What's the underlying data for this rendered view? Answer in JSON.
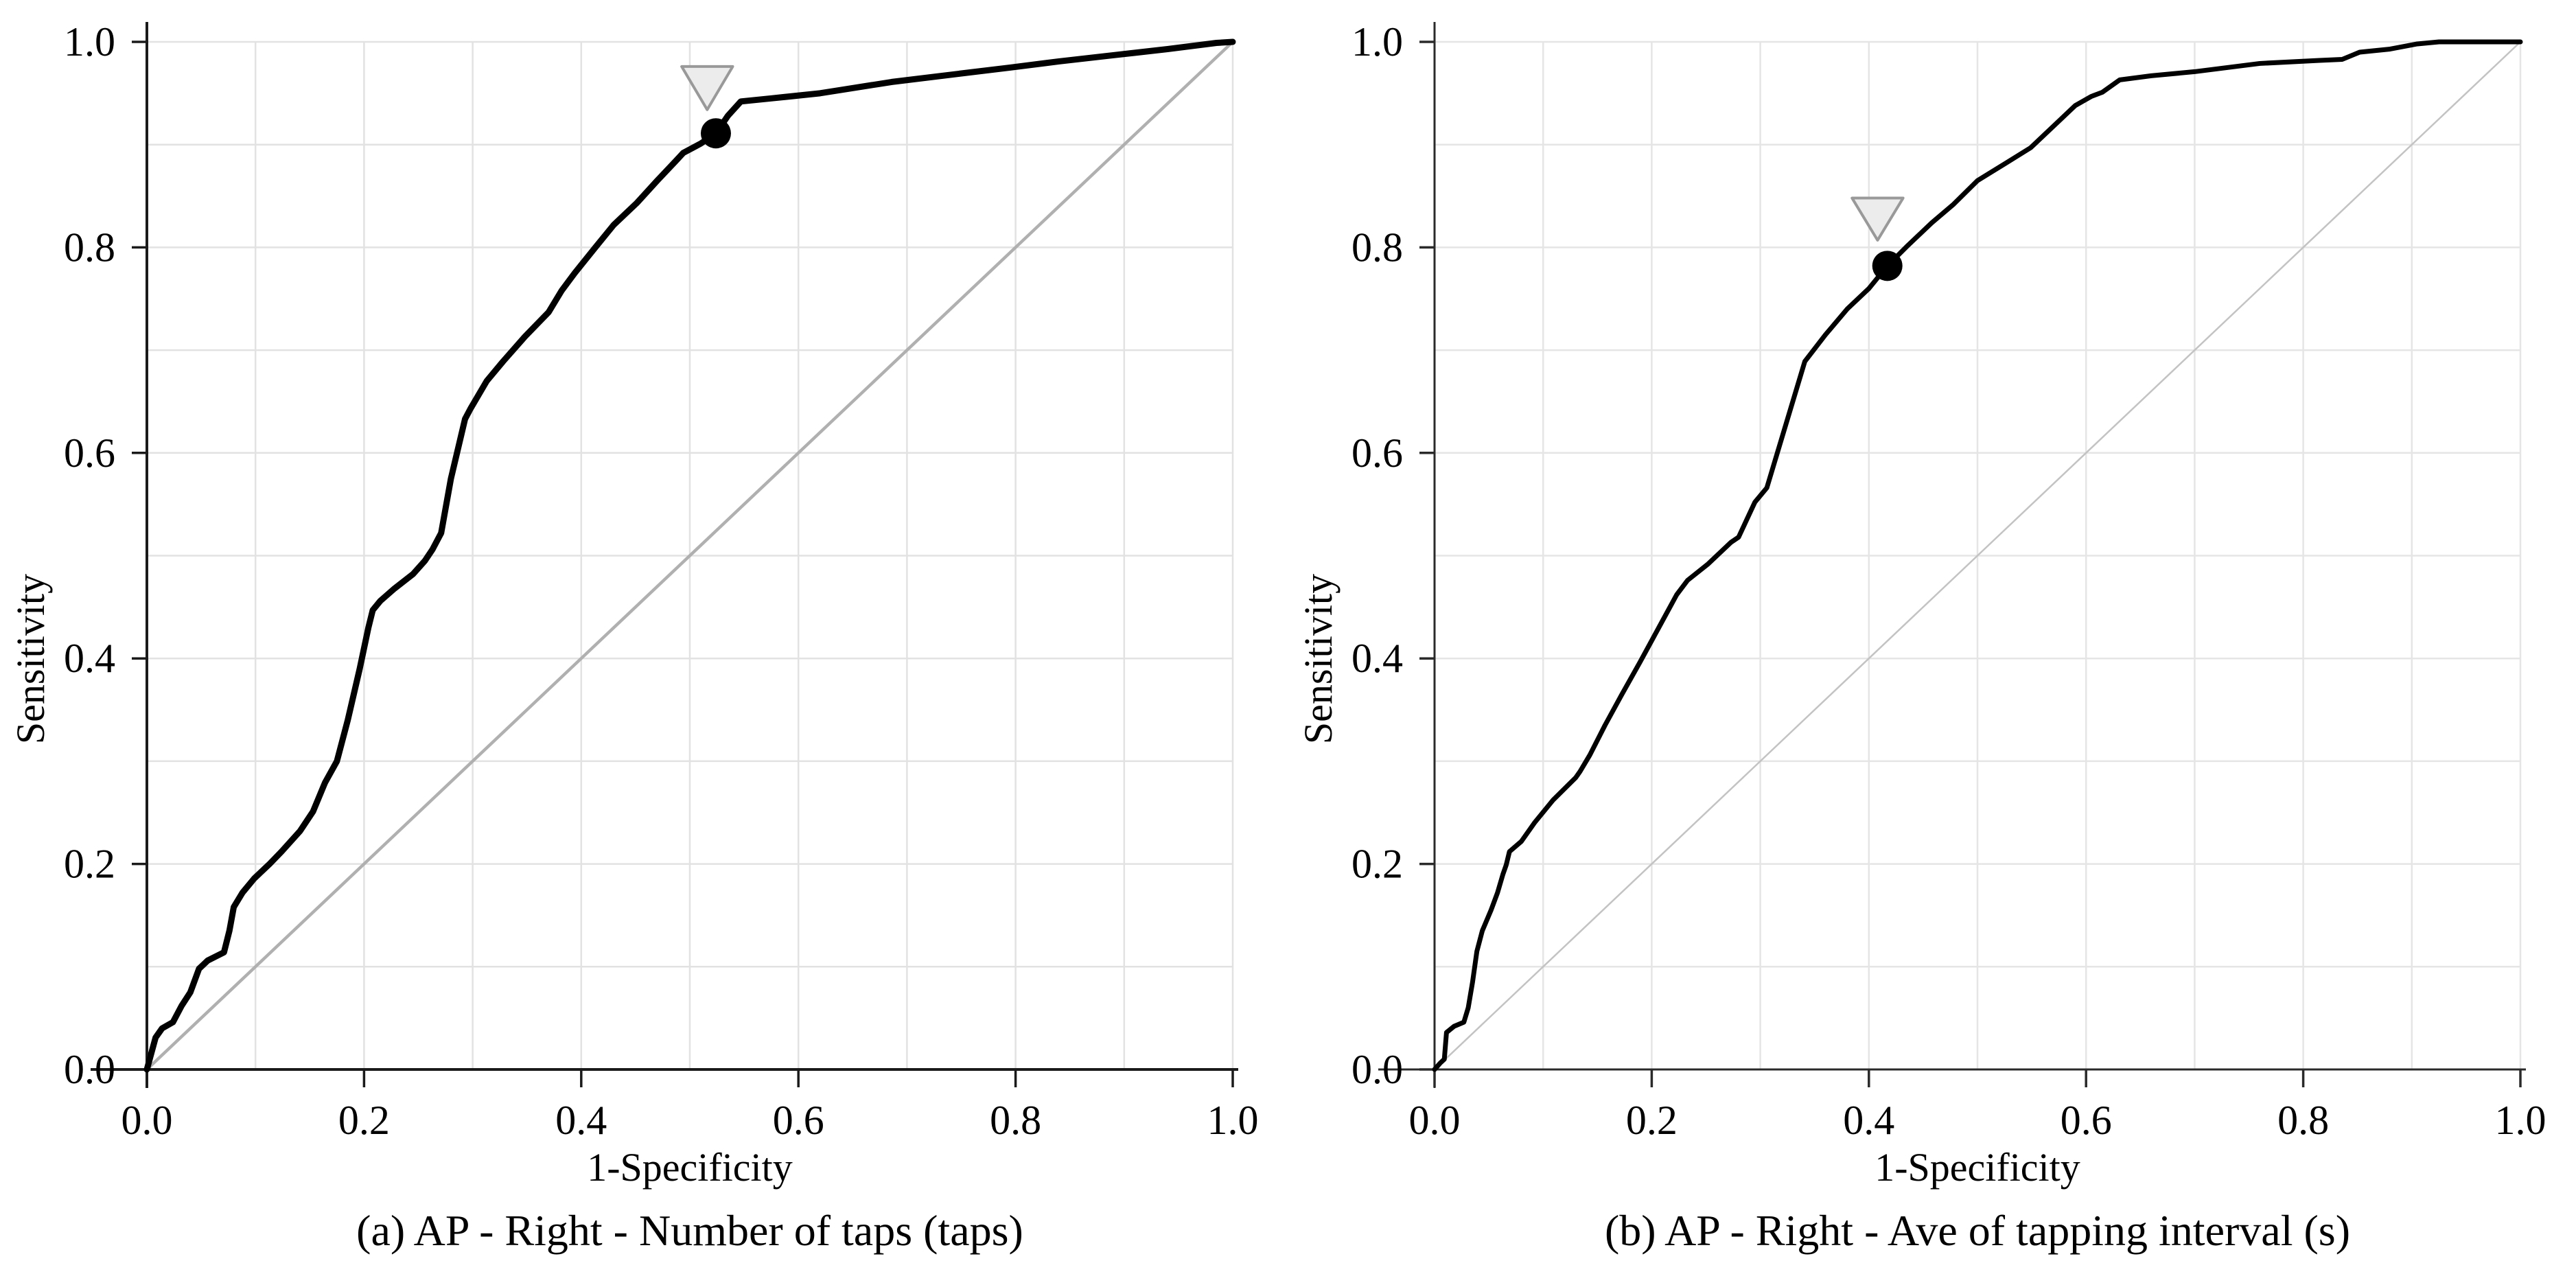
{
  "figure": {
    "background": "#ffffff",
    "description": "Two ROC curve plots side by side with marked operating points"
  },
  "chart_data": [
    {
      "type": "line",
      "kind": "roc-curve",
      "caption": "(a) AP - Right - Number of taps (taps)",
      "xlabel": "1-Specificity",
      "ylabel": "Sensitivity",
      "xlim": [
        0.0,
        1.0
      ],
      "ylim": [
        0.0,
        1.0
      ],
      "x_ticks": [
        "0.0",
        "0.2",
        "0.4",
        "0.6",
        "0.8",
        "1.0"
      ],
      "y_ticks": [
        "0.0",
        "0.2",
        "0.4",
        "0.6",
        "0.8",
        "1.0"
      ],
      "grid": true,
      "grid_step": 0.1,
      "legend": null,
      "colors": {
        "curve": "#000000",
        "diagonal": "#b0b0b0",
        "grid": "#e2e2e2",
        "axis": "#1a1a1a",
        "marker": "#000000",
        "cursor_fill": "#ececec",
        "cursor_stroke": "#999999"
      },
      "diagonal": [
        [
          0,
          0
        ],
        [
          1,
          1
        ]
      ],
      "series": [
        {
          "name": "ROC curve",
          "points": [
            [
              0.0,
              0.0
            ],
            [
              0.008,
              0.031
            ],
            [
              0.014,
              0.04
            ],
            [
              0.024,
              0.046
            ],
            [
              0.032,
              0.062
            ],
            [
              0.04,
              0.075
            ],
            [
              0.048,
              0.098
            ],
            [
              0.056,
              0.106
            ],
            [
              0.071,
              0.114
            ],
            [
              0.076,
              0.135
            ],
            [
              0.08,
              0.158
            ],
            [
              0.088,
              0.172
            ],
            [
              0.099,
              0.186
            ],
            [
              0.113,
              0.2
            ],
            [
              0.124,
              0.212
            ],
            [
              0.141,
              0.232
            ],
            [
              0.153,
              0.251
            ],
            [
              0.164,
              0.279
            ],
            [
              0.175,
              0.3
            ],
            [
              0.185,
              0.34
            ],
            [
              0.196,
              0.39
            ],
            [
              0.204,
              0.43
            ],
            [
              0.208,
              0.447
            ],
            [
              0.215,
              0.456
            ],
            [
              0.228,
              0.468
            ],
            [
              0.245,
              0.482
            ],
            [
              0.256,
              0.495
            ],
            [
              0.263,
              0.506
            ],
            [
              0.271,
              0.522
            ],
            [
              0.28,
              0.575
            ],
            [
              0.293,
              0.633
            ],
            [
              0.298,
              0.643
            ],
            [
              0.313,
              0.67
            ],
            [
              0.328,
              0.689
            ],
            [
              0.348,
              0.713
            ],
            [
              0.37,
              0.737
            ],
            [
              0.382,
              0.758
            ],
            [
              0.394,
              0.775
            ],
            [
              0.413,
              0.8
            ],
            [
              0.43,
              0.822
            ],
            [
              0.451,
              0.843
            ],
            [
              0.47,
              0.865
            ],
            [
              0.487,
              0.884
            ],
            [
              0.494,
              0.892
            ],
            [
              0.51,
              0.901
            ],
            [
              0.524,
              0.911
            ],
            [
              0.535,
              0.928
            ],
            [
              0.547,
              0.942
            ],
            [
              0.575,
              0.945
            ],
            [
              0.62,
              0.95
            ],
            [
              0.686,
              0.961
            ],
            [
              0.748,
              0.969
            ],
            [
              0.795,
              0.975
            ],
            [
              0.84,
              0.981
            ],
            [
              0.89,
              0.987
            ],
            [
              0.94,
              0.993
            ],
            [
              0.985,
              0.999
            ],
            [
              1.0,
              1.0
            ]
          ]
        }
      ],
      "operating_point": [
        0.524,
        0.911
      ],
      "marker_shape": "circle",
      "cursor": {
        "shape": "triangle-down",
        "x": 0.516,
        "y_tip": 0.934,
        "y_top": 0.976,
        "half_width": 0.0235
      }
    },
    {
      "type": "line",
      "kind": "roc-curve",
      "caption": "(b) AP - Right - Ave of tapping interval (s)",
      "xlabel": "1-Specificity",
      "ylabel": "Sensitivity",
      "xlim": [
        0.0,
        1.0
      ],
      "ylim": [
        0.0,
        1.0
      ],
      "x_ticks": [
        "0.0",
        "0.2",
        "0.4",
        "0.6",
        "0.8",
        "1.0"
      ],
      "y_ticks": [
        "0.0",
        "0.2",
        "0.4",
        "0.6",
        "0.8",
        "1.0"
      ],
      "grid": true,
      "grid_step": 0.1,
      "legend": null,
      "colors": {
        "curve": "#000000",
        "diagonal": "#c3c3c3",
        "grid": "#e5e5e5",
        "axis": "#2a2a2a",
        "marker": "#000000",
        "cursor_fill": "#ececec",
        "cursor_stroke": "#999999"
      },
      "diagonal": [
        [
          0,
          0
        ],
        [
          1,
          1
        ]
      ],
      "series": [
        {
          "name": "ROC curve",
          "points": [
            [
              0.0,
              0.0
            ],
            [
              0.005,
              0.006
            ],
            [
              0.009,
              0.01
            ],
            [
              0.011,
              0.036
            ],
            [
              0.018,
              0.042
            ],
            [
              0.027,
              0.046
            ],
            [
              0.031,
              0.06
            ],
            [
              0.035,
              0.085
            ],
            [
              0.039,
              0.115
            ],
            [
              0.044,
              0.135
            ],
            [
              0.052,
              0.155
            ],
            [
              0.058,
              0.172
            ],
            [
              0.063,
              0.19
            ],
            [
              0.066,
              0.199
            ],
            [
              0.069,
              0.212
            ],
            [
              0.08,
              0.222
            ],
            [
              0.092,
              0.24
            ],
            [
              0.109,
              0.262
            ],
            [
              0.13,
              0.284
            ],
            [
              0.134,
              0.29
            ],
            [
              0.143,
              0.306
            ],
            [
              0.157,
              0.335
            ],
            [
              0.172,
              0.364
            ],
            [
              0.189,
              0.396
            ],
            [
              0.206,
              0.429
            ],
            [
              0.223,
              0.462
            ],
            [
              0.233,
              0.476
            ],
            [
              0.252,
              0.492
            ],
            [
              0.273,
              0.513
            ],
            [
              0.28,
              0.518
            ],
            [
              0.295,
              0.552
            ],
            [
              0.306,
              0.566
            ],
            [
              0.341,
              0.689
            ],
            [
              0.36,
              0.715
            ],
            [
              0.38,
              0.74
            ],
            [
              0.4,
              0.76
            ],
            [
              0.417,
              0.782
            ],
            [
              0.436,
              0.802
            ],
            [
              0.458,
              0.824
            ],
            [
              0.478,
              0.842
            ],
            [
              0.5,
              0.865
            ],
            [
              0.52,
              0.878
            ],
            [
              0.549,
              0.897
            ],
            [
              0.577,
              0.925
            ],
            [
              0.59,
              0.938
            ],
            [
              0.605,
              0.947
            ],
            [
              0.615,
              0.951
            ],
            [
              0.631,
              0.963
            ],
            [
              0.66,
              0.967
            ],
            [
              0.7,
              0.971
            ],
            [
              0.76,
              0.979
            ],
            [
              0.815,
              0.982
            ],
            [
              0.836,
              0.983
            ],
            [
              0.852,
              0.99
            ],
            [
              0.88,
              0.993
            ],
            [
              0.905,
              0.998
            ],
            [
              0.925,
              1.0
            ],
            [
              1.0,
              1.0
            ]
          ]
        }
      ],
      "operating_point": [
        0.417,
        0.782
      ],
      "marker_shape": "circle",
      "cursor": {
        "shape": "triangle-down",
        "x": 0.408,
        "y_tip": 0.807,
        "y_top": 0.848,
        "half_width": 0.0235
      }
    }
  ]
}
